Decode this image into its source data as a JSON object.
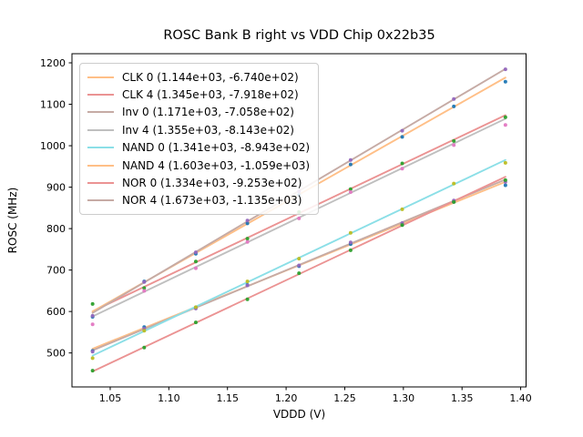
{
  "chart_data": {
    "type": "scatter",
    "title": "ROSC Bank B right vs VDD Chip 0x22b35",
    "xlabel": "VDDD (V)",
    "ylabel": "ROSC (MHz)",
    "xlim": [
      1.0174,
      1.4046
    ],
    "ylim": [
      418,
      1222
    ],
    "xticks": [
      1.05,
      1.1,
      1.15,
      1.2,
      1.25,
      1.3,
      1.35,
      1.4
    ],
    "xtick_labels": [
      "1.05",
      "1.10",
      "1.15",
      "1.20",
      "1.25",
      "1.30",
      "1.35",
      "1.40"
    ],
    "yticks": [
      500,
      600,
      700,
      800,
      900,
      1000,
      1100,
      1200
    ],
    "grid": false,
    "legend_position": "upper left",
    "x": [
      1.035,
      1.079,
      1.123,
      1.167,
      1.211,
      1.255,
      1.299,
      1.343,
      1.387
    ],
    "series": [
      {
        "name": "CLK 0",
        "legend_label": "CLK 0 (1.144e+03, -6.740e+02)",
        "fit_slope": 1144.0,
        "fit_intercept": -674.0,
        "line_color": "#ffbf87",
        "marker_color": "#1f77b4",
        "values": [
          505.0,
          562.3,
          609.7,
          664.0,
          709.4,
          762.7,
          809.1,
          864.4,
          904.7
        ]
      },
      {
        "name": "CLK 4",
        "legend_label": "CLK 4 (1.345e+03, -7.918e+02)",
        "fit_slope": 1345.0,
        "fit_intercept": -791.8,
        "line_color": "#eb9393",
        "marker_color": "#2ca02c",
        "values": [
          618.3,
          656.5,
          720.6,
          775.8,
          840.0,
          895.2,
          957.3,
          1011.5,
          1068.7
        ]
      },
      {
        "name": "Inv 0",
        "legend_label": "Inv 0 (1.171e+03, -7.058e+02)",
        "fit_slope": 1171.0,
        "fit_intercept": -705.8,
        "line_color": "#c6aba5",
        "marker_color": "#9467bd",
        "values": [
          503.2,
          558.7,
          607.2,
          662.8,
          711.3,
          766.8,
          813.3,
          867.9,
          912.4
        ]
      },
      {
        "name": "Inv 4",
        "legend_label": "Inv 4 (1.355e+03, -8.143e+02)",
        "fit_slope": 1355.0,
        "fit_intercept": -814.3,
        "line_color": "#bfbfbf",
        "marker_color": "#e377c2",
        "values": [
          569.1,
          649.7,
          704.3,
          767.9,
          824.6,
          888.2,
          944.8,
          1001.4,
          1050.1
        ]
      },
      {
        "name": "NAND 0",
        "legend_label": "NAND 0 (1.341e+03, -8.943e+02)",
        "fit_slope": 1341.0,
        "fit_intercept": -894.3,
        "line_color": "#8bdfe7",
        "marker_color": "#bcbd22",
        "values": [
          487.6,
          553.6,
          610.6,
          672.6,
          727.6,
          789.7,
          846.7,
          908.7,
          958.7
        ]
      },
      {
        "name": "NAND 4",
        "legend_label": "NAND 4 (1.603e+03, -1.059e+03)",
        "fit_slope": 1603.0,
        "fit_intercept": -1059.0,
        "line_color": "#ffbf87",
        "marker_color": "#1f77b4",
        "values": [
          587.1,
          672.6,
          739.2,
          812.7,
          881.2,
          954.8,
          1021.3,
          1094.8,
          1154.4
        ]
      },
      {
        "name": "NOR 0",
        "legend_label": "NOR 0 (1.334e+03, -9.253e+02)",
        "fit_slope": 1334.0,
        "fit_intercept": -925.3,
        "line_color": "#eb9393",
        "marker_color": "#2ca02c",
        "values": [
          457.4,
          513.1,
          573.8,
          629.5,
          692.2,
          747.9,
          808.6,
          864.3,
          917.0
        ]
      },
      {
        "name": "NOR 4",
        "legend_label": "NOR 4 (1.673e+03, -1.135e+03)",
        "fit_slope": 1673.0,
        "fit_intercept": -1135.0,
        "line_color": "#c6aba5",
        "marker_color": "#9467bd",
        "values": [
          589.6,
          671.2,
          742.8,
          819.4,
          890.0,
          965.6,
          1036.2,
          1112.8,
          1184.5
        ]
      }
    ]
  }
}
